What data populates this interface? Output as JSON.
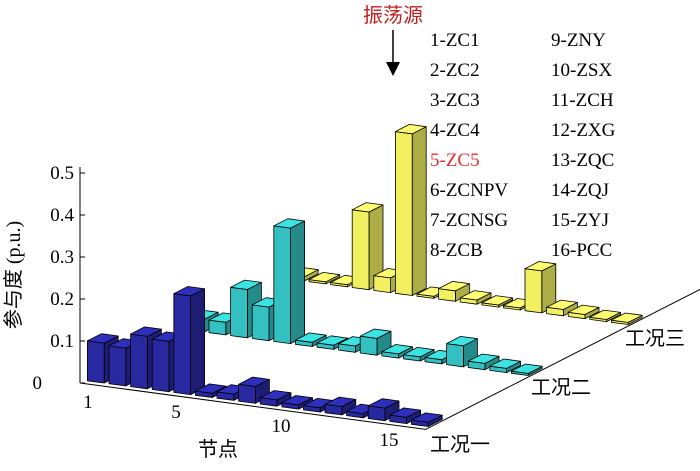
{
  "chart_data": {
    "type": "bar",
    "variant": "3d-bar",
    "ylabel": "参与度 (p.u.)",
    "xlabel": "节点",
    "yticks": [
      "0",
      "0.1",
      "0.2",
      "0.3",
      "0.4",
      "0.5"
    ],
    "xticks": [
      "1",
      "5",
      "10",
      "15"
    ],
    "ylim": [
      0,
      0.5
    ],
    "categories": [
      "1",
      "2",
      "3",
      "4",
      "5",
      "6",
      "7",
      "8",
      "9",
      "10",
      "11",
      "12",
      "13",
      "14",
      "15",
      "16"
    ],
    "series": [
      {
        "name": "工况一",
        "color": "#2828a0",
        "values": [
          0.095,
          0.09,
          0.125,
          0.12,
          0.235,
          0.01,
          0.015,
          0.04,
          0.015,
          0.01,
          0.01,
          0.02,
          0.01,
          0.03,
          0.015,
          0.01
        ]
      },
      {
        "name": "工况二",
        "color": "#33c0c0",
        "values": [
          0.03,
          0.03,
          0.115,
          0.08,
          0.275,
          0.01,
          0.01,
          0.015,
          0.04,
          0.01,
          0.01,
          0.01,
          0.05,
          0.015,
          0.01,
          0.005
        ]
      },
      {
        "name": "工况三",
        "color": "#f0f060",
        "values": [
          0.01,
          0.005,
          0.005,
          0.185,
          0.035,
          0.385,
          0.005,
          0.025,
          0.01,
          0.005,
          0.005,
          0.1,
          0.015,
          0.01,
          0.005,
          0.005
        ]
      }
    ],
    "annotation": {
      "text": "振荡源",
      "color": "#c02020"
    },
    "legend": {
      "placement": "top-right",
      "highlight_color": "#e03030",
      "col1": [
        "1-ZC1",
        "2-ZC2",
        "3-ZC3",
        "4-ZC4",
        "5-ZC5",
        "6-ZCNPV",
        "7-ZCNSG",
        "8-ZCB"
      ],
      "col2": [
        "9-ZNY",
        "10-ZSX",
        "11-ZCH",
        "12-ZXG",
        "13-ZQC",
        "14-ZQJ",
        "15-ZYJ",
        "16-PCC"
      ],
      "highlight_item": "5-ZC5"
    }
  }
}
